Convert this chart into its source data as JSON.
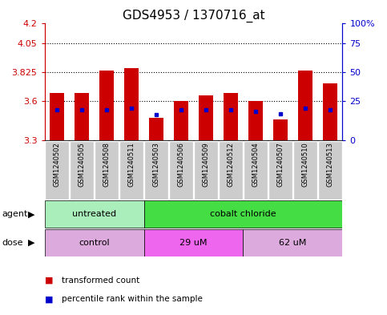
{
  "title": "GDS4953 / 1370716_at",
  "samples": [
    "GSM1240502",
    "GSM1240505",
    "GSM1240508",
    "GSM1240511",
    "GSM1240503",
    "GSM1240506",
    "GSM1240509",
    "GSM1240512",
    "GSM1240504",
    "GSM1240507",
    "GSM1240510",
    "GSM1240513"
  ],
  "bar_tops": [
    3.665,
    3.665,
    3.835,
    3.855,
    3.47,
    3.6,
    3.645,
    3.665,
    3.6,
    3.46,
    3.835,
    3.74
  ],
  "blue_positions": [
    3.535,
    3.535,
    3.535,
    3.545,
    3.495,
    3.535,
    3.535,
    3.535,
    3.525,
    3.505,
    3.545,
    3.535
  ],
  "ymin": 3.3,
  "ymax": 4.2,
  "yticks_left": [
    3.3,
    3.6,
    3.825,
    4.05,
    4.2
  ],
  "yticks_right_vals": [
    0,
    25,
    50,
    75,
    100
  ],
  "yticks_right_pos": [
    3.3,
    3.6,
    3.825,
    4.05,
    4.2
  ],
  "hlines": [
    3.6,
    3.825,
    4.05
  ],
  "bar_color": "#cc0000",
  "blue_color": "#0000cc",
  "bar_width": 0.6,
  "baseline": 3.3,
  "agent_groups": [
    {
      "label": "untreated",
      "start": 0,
      "end": 3,
      "color": "#aaeebb"
    },
    {
      "label": "cobalt chloride",
      "start": 4,
      "end": 11,
      "color": "#44dd44"
    }
  ],
  "dose_groups": [
    {
      "label": "control",
      "start": 0,
      "end": 3,
      "color": "#ddaadd"
    },
    {
      "label": "29 uM",
      "start": 4,
      "end": 7,
      "color": "#ee66ee"
    },
    {
      "label": "62 uM",
      "start": 8,
      "end": 11,
      "color": "#ddaadd"
    }
  ],
  "agent_label": "agent",
  "dose_label": "dose",
  "legend_items": [
    {
      "label": "transformed count",
      "color": "#cc0000"
    },
    {
      "label": "percentile rank within the sample",
      "color": "#0000cc"
    }
  ],
  "left_axis_color": "#cc0000",
  "right_axis_color": "#0000cc",
  "sample_box_color": "#cccccc",
  "title_fontsize": 11,
  "tick_fontsize": 8,
  "label_fontsize": 8
}
